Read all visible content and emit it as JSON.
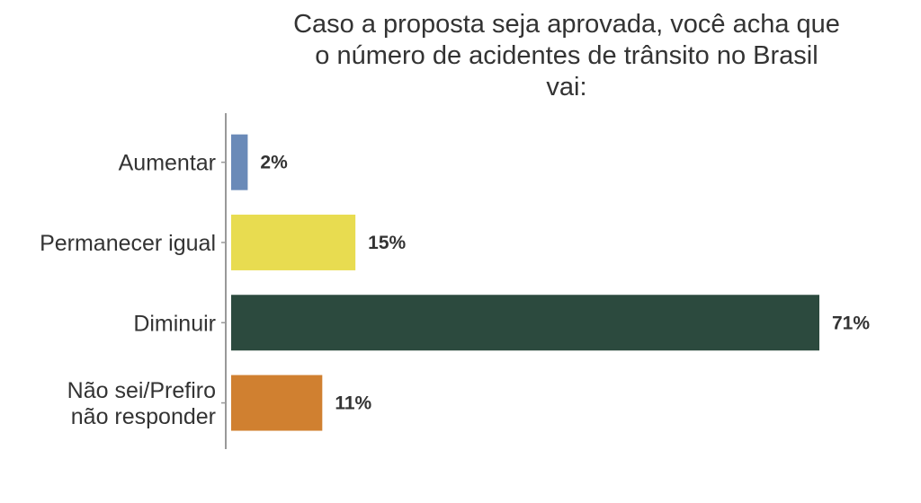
{
  "chart_data": {
    "type": "bar",
    "orientation": "horizontal",
    "title": [
      "Caso a proposta seja aprovada, você acha que",
      "o número de acidentes de trânsito no Brasil",
      "vai:"
    ],
    "categories": [
      [
        "Aumentar"
      ],
      [
        "Permanecer igual"
      ],
      [
        "Diminuir"
      ],
      [
        "Não sei/Prefiro",
        "não responder"
      ]
    ],
    "values": [
      2,
      15,
      71,
      11
    ],
    "value_labels": [
      "2%",
      "15%",
      "71%",
      "11%"
    ],
    "colors": [
      "#6a8ab8",
      "#e8dc50",
      "#2c4a3e",
      "#d08030"
    ],
    "xlim": [
      0,
      71
    ],
    "grid": false,
    "legend": "none"
  }
}
